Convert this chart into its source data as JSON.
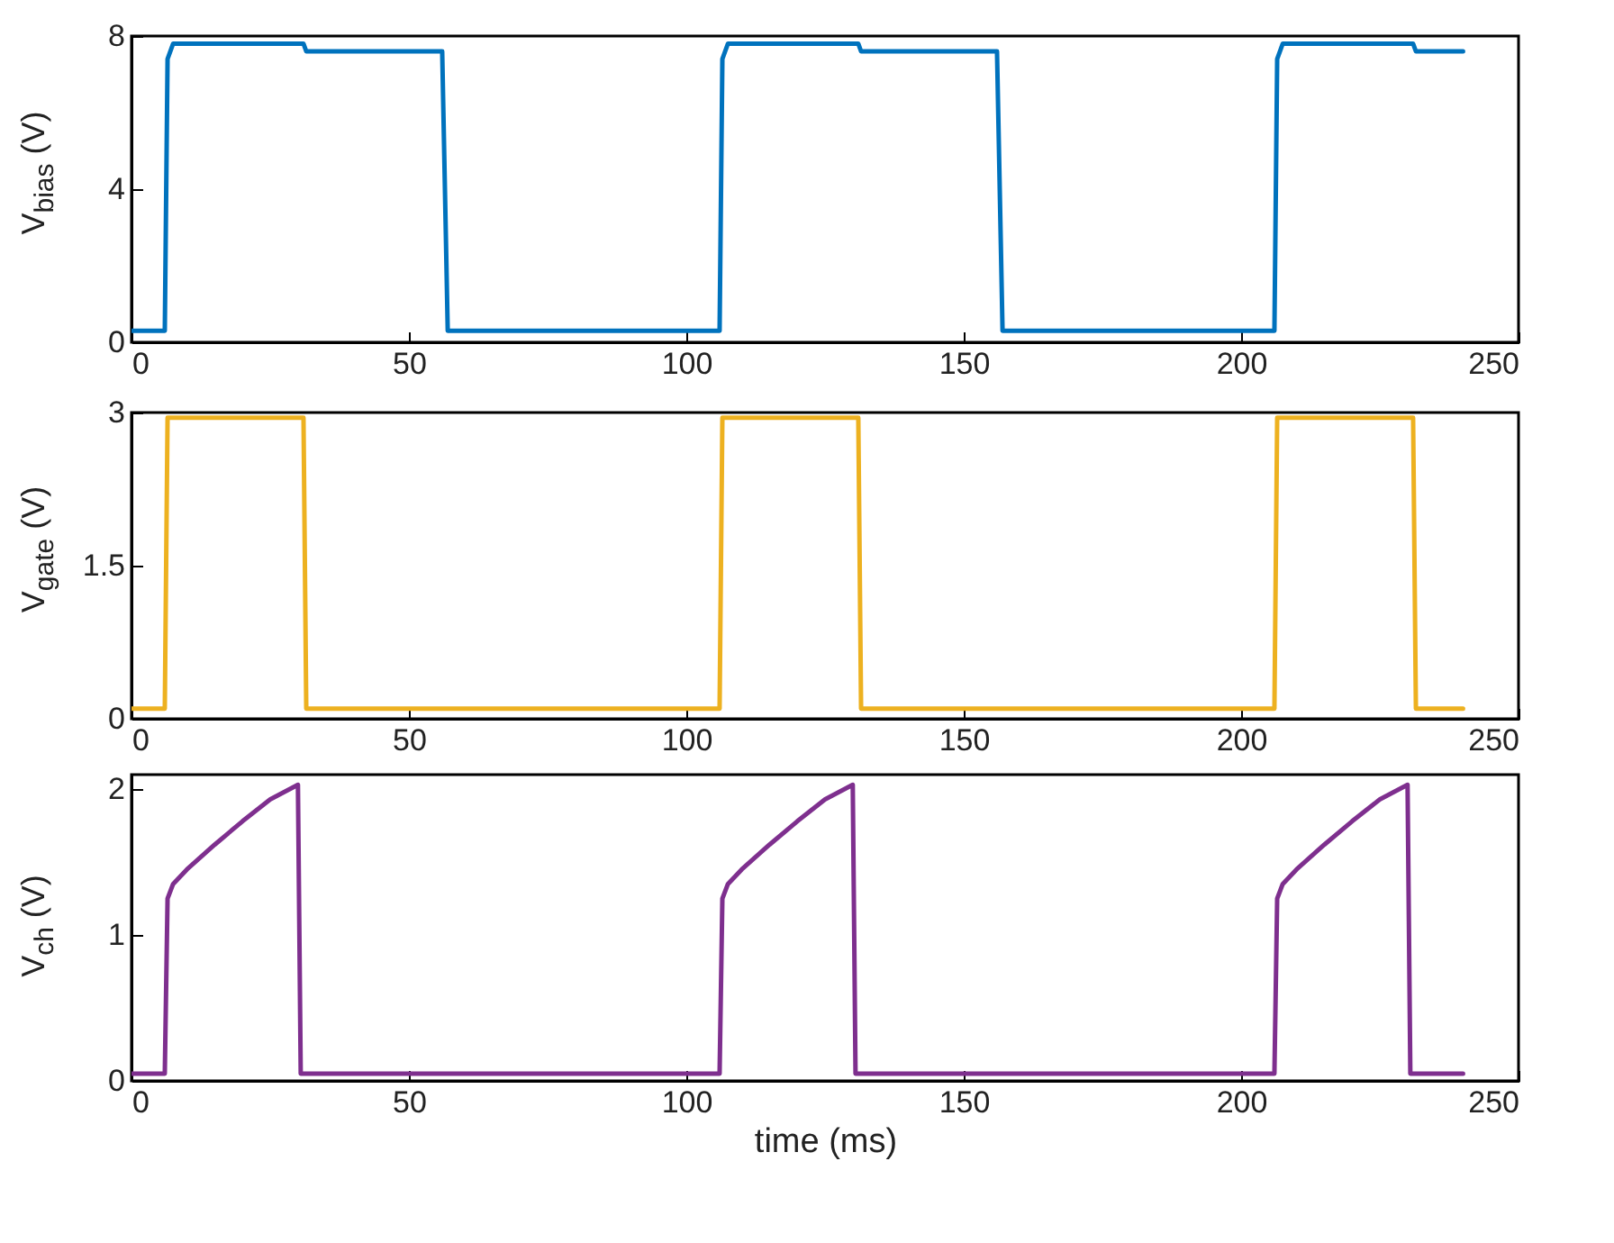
{
  "chart_data": [
    {
      "type": "line",
      "ylabel": "V$_{bias}$ (V)",
      "xlim": [
        0,
        250
      ],
      "xticks": [
        0,
        50,
        100,
        150,
        200,
        250
      ],
      "ylim": [
        0,
        8
      ],
      "yticks": [
        0,
        4,
        8
      ],
      "grid": false,
      "series": [
        {
          "color": "#0072bd",
          "x": [
            0,
            6,
            6.5,
            7.5,
            31,
            31.5,
            56,
            57,
            106,
            106.5,
            107.5,
            131,
            131.5,
            156,
            157,
            206,
            206.5,
            207.5,
            231,
            231.5,
            240
          ],
          "values": [
            0.3,
            0.3,
            7.4,
            7.8,
            7.8,
            7.6,
            7.6,
            0.3,
            0.3,
            7.4,
            7.8,
            7.8,
            7.6,
            7.6,
            0.3,
            0.3,
            7.4,
            7.8,
            7.8,
            7.6,
            7.6
          ]
        }
      ]
    },
    {
      "type": "line",
      "ylabel": "V$_{gate}$ (V)",
      "xlim": [
        0,
        250
      ],
      "xticks": [
        0,
        50,
        100,
        150,
        200,
        250
      ],
      "ylim": [
        0,
        3
      ],
      "yticks": [
        0,
        1.5,
        3
      ],
      "grid": false,
      "series": [
        {
          "color": "#edb120",
          "x": [
            0,
            6,
            6.5,
            31,
            31.5,
            106,
            106.5,
            131,
            131.5,
            206,
            206.5,
            231,
            231.5,
            240
          ],
          "values": [
            0.1,
            0.1,
            2.95,
            2.95,
            0.1,
            0.1,
            2.95,
            2.95,
            0.1,
            0.1,
            2.95,
            2.95,
            0.1,
            0.1
          ]
        }
      ]
    },
    {
      "type": "line",
      "xlabel": "time (ms)",
      "ylabel": "V$_{ch}$ (V)",
      "xlim": [
        0,
        250
      ],
      "xticks": [
        0,
        50,
        100,
        150,
        200,
        250
      ],
      "ylim": [
        0,
        2.1
      ],
      "yticks": [
        0,
        1,
        2
      ],
      "grid": false,
      "series": [
        {
          "color": "#7e2f8e",
          "x": [
            0,
            6,
            6.5,
            7.5,
            10,
            15,
            20,
            25,
            30,
            30.5,
            106,
            106.5,
            107.5,
            110,
            115,
            120,
            125,
            130,
            130.5,
            206,
            206.5,
            207.5,
            210,
            215,
            220,
            225,
            230,
            230.5,
            240
          ],
          "values": [
            0.05,
            0.05,
            1.25,
            1.35,
            1.45,
            1.62,
            1.78,
            1.93,
            2.03,
            0.05,
            0.05,
            1.25,
            1.35,
            1.45,
            1.62,
            1.78,
            1.93,
            2.03,
            0.05,
            0.05,
            1.25,
            1.35,
            1.45,
            1.62,
            1.78,
            1.93,
            2.03,
            0.05,
            0.05
          ]
        }
      ]
    }
  ]
}
